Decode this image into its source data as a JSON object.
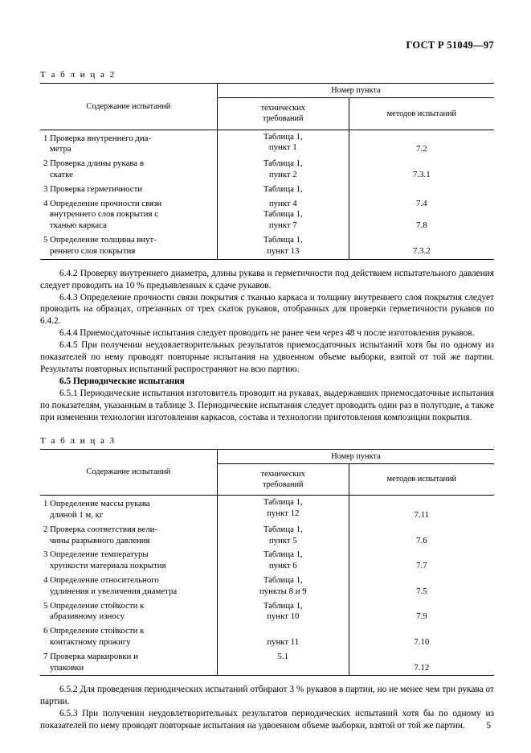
{
  "docCode": "ГОСТ Р 51049—97",
  "pageNumber": "5",
  "table2": {
    "caption": "Т а б л и ц а   2",
    "headers": {
      "c1": "Содержание испытаний",
      "group": "Номер пункта",
      "c2": "технических\nтребований",
      "c3": "методов испытаний"
    },
    "rows": [
      {
        "a": "1  Проверка  внутреннего  диа-\nметра",
        "b": "Таблица 1,\nпункт 1",
        "c": "7.2"
      },
      {
        "a": "2  Проверка   длины   рукава   в\nскатке",
        "b": "Таблица 1,\nпункт 2",
        "c": "7.3.1"
      },
      {
        "a": "3  Проверка герметичности",
        "b": "Таблица 1,",
        "c": ""
      },
      {
        "a": "4  Определение прочности связи\nвнутреннего    слоя    покрытия    с\nтканью каркаса",
        "b": "пункт 4\nТаблица 1,\nпункт 7",
        "c": "7.4\n\n7.8"
      },
      {
        "a": "5   Определение   толщины   внут-\nреннего слоя покрытия",
        "b": "Таблица 1,\nпункт 13",
        "c": "7.3.2"
      }
    ]
  },
  "block1": [
    "6.4.2 Проверку внутреннего диаметра, длины рукава и герметичности под действием испыта­тельного давления следует проводить на 10 % предъявленных к сдаче рукавов.",
    "6.4.3 Определение прочности связи покрытия с тканью каркаса и толщину внутреннего слоя покрытия следует проводить на образцах, отрезанных от трех скаток рукавов, отобранных для проверки герметичности рукавов по 6.4.2.",
    "6.4.4 Приемосдаточные испытания следует проводить не ранее чем через 48 ч после изготов­ления рукавов.",
    "6.4.5 При получении неудовлетворительных результатов приемосдаточных испытаний хотя бы по одному из показателей по нему проводят повторные испытания на удвоенном объеме выборки, взятой от той же партии. Результаты повторных испытаний распространяют на всю партию."
  ],
  "heading65": "6.5  Периодические испытания",
  "block2": [
    "6.5.1 Периодические испытания изготовитель проводит на рукавах, выдержавших приемосдаточ­ные испытания по показателям, указанным в таблице 3. Периодические испытания следует проводить один раз в полугодие, а также при изменении технологии изготовления каркасов, состава и технологии приготовления композиции покрытия."
  ],
  "table3": {
    "caption": "Т а б л и ц а   3",
    "headers": {
      "c1": "Содержание испытаний",
      "group": "Номер пункта",
      "c2": "технических\nтребований",
      "c3": "методов испытаний"
    },
    "rows": [
      {
        "a": "1   Определение    массы    рукава\nдлиной 1 м, кг",
        "b": "Таблица 1,\nпункт 12",
        "c": "7.11"
      },
      {
        "a": "2  Проверка  соответствия  вели-\nчины разрывного давления",
        "b": "Таблица 1,\nпункт 5",
        "c": "7.6"
      },
      {
        "a": "3    Определение      температуры\nхрупкости материала покрытия",
        "b": "Таблица 1,\nпункт 6",
        "c": "7.7"
      },
      {
        "a": "4   Определение   относительного\nудлинения и увеличения диаметра",
        "b": "Таблица 1,\nпункты 8 и 9",
        "c": "7.5"
      },
      {
        "a": "5    Определение     стойкости     к\nабразивному износу",
        "b": "Таблица 1,\nпункт 10",
        "c": "7.9"
      },
      {
        "a": "6    Определение     стойкости     к\nконтактному прожигу",
        "b": "\nпункт 11",
        "c": "7.10"
      },
      {
        "a": "7    Проверка       маркировки       и\nупаковки",
        "b": "5.1",
        "c": "7.12"
      }
    ]
  },
  "block3": [
    "6.5.2 Для проведения периодических испытаний отбирают 3 % рукавов в партии, но не менее чем три рукава от партии.",
    "6.5.3 При получении неудовлетворительных результатов периодических испытаний хотя бы по одному из показателей по нему проводят повторные испытания на удвоенном объеме выборки, взятой от той же партии."
  ]
}
